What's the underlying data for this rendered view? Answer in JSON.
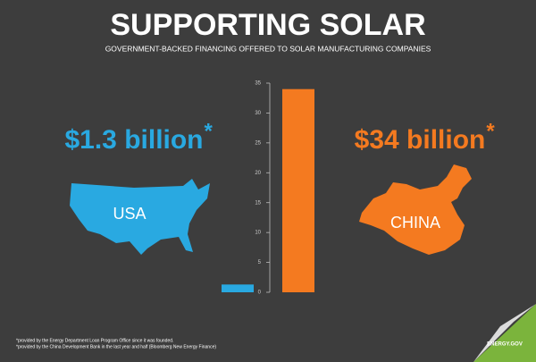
{
  "chart_data": {
    "type": "bar",
    "title": "SUPPORTING SOLAR",
    "subtitle": "GOVERNMENT-BACKED FINANCING OFFERED TO SOLAR MANUFACTURING COMPANIES",
    "categories": [
      "USA",
      "CHINA"
    ],
    "values": [
      1.3,
      34
    ],
    "value_labels": [
      "$1.3 billion",
      "$34 billion"
    ],
    "note_marker": "*",
    "colors": [
      "#29a9e1",
      "#f47a20"
    ],
    "ylim": [
      0,
      35
    ],
    "yticks": [
      0,
      5,
      10,
      15,
      20,
      25,
      30,
      35
    ],
    "grid": false,
    "footnotes": [
      "*provided by the Energy Department Loan Program Office since it was founded.",
      "*provided by the China Development Bank in the last year and half (Bloomberg New Energy Finance)"
    ],
    "source": "ENERGY.GOV"
  }
}
